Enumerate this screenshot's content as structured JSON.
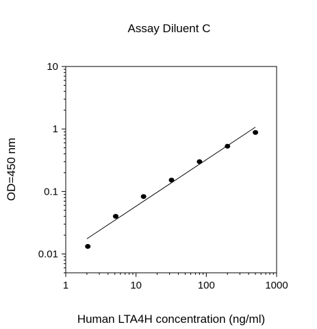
{
  "chart_data": {
    "type": "scatter",
    "title": "Assay Diluent C",
    "xlabel": "Human LTA4H concentration (ng/ml)",
    "ylabel": "OD=450 nm",
    "x_scale": "log",
    "y_scale": "log",
    "xlim": [
      1,
      1000
    ],
    "ylim": [
      0.005,
      10
    ],
    "x_ticks": [
      {
        "value": 1,
        "label": "1"
      },
      {
        "value": 10,
        "label": "10"
      },
      {
        "value": 100,
        "label": "100"
      },
      {
        "value": 1000,
        "label": "1000"
      }
    ],
    "y_ticks": [
      {
        "value": 0.01,
        "label": "0.01"
      },
      {
        "value": 0.1,
        "label": "0.1"
      },
      {
        "value": 1,
        "label": "1"
      },
      {
        "value": 10,
        "label": "10"
      }
    ],
    "grid": false,
    "legend": "none",
    "series": [
      {
        "points": [
          {
            "x": 2.06,
            "y": 0.0132
          },
          {
            "x": 5.14,
            "y": 0.04
          },
          {
            "x": 12.8,
            "y": 0.083
          },
          {
            "x": 32.0,
            "y": 0.152
          },
          {
            "x": 80.0,
            "y": 0.3
          },
          {
            "x": 200,
            "y": 0.53
          },
          {
            "x": 500,
            "y": 0.88
          }
        ]
      }
    ],
    "fit_line": {
      "x": [
        2.0,
        500
      ],
      "y": [
        0.0175,
        1.07
      ]
    },
    "colors": {
      "marker": "#000000",
      "line": "#000000",
      "axis": "#000000"
    }
  }
}
